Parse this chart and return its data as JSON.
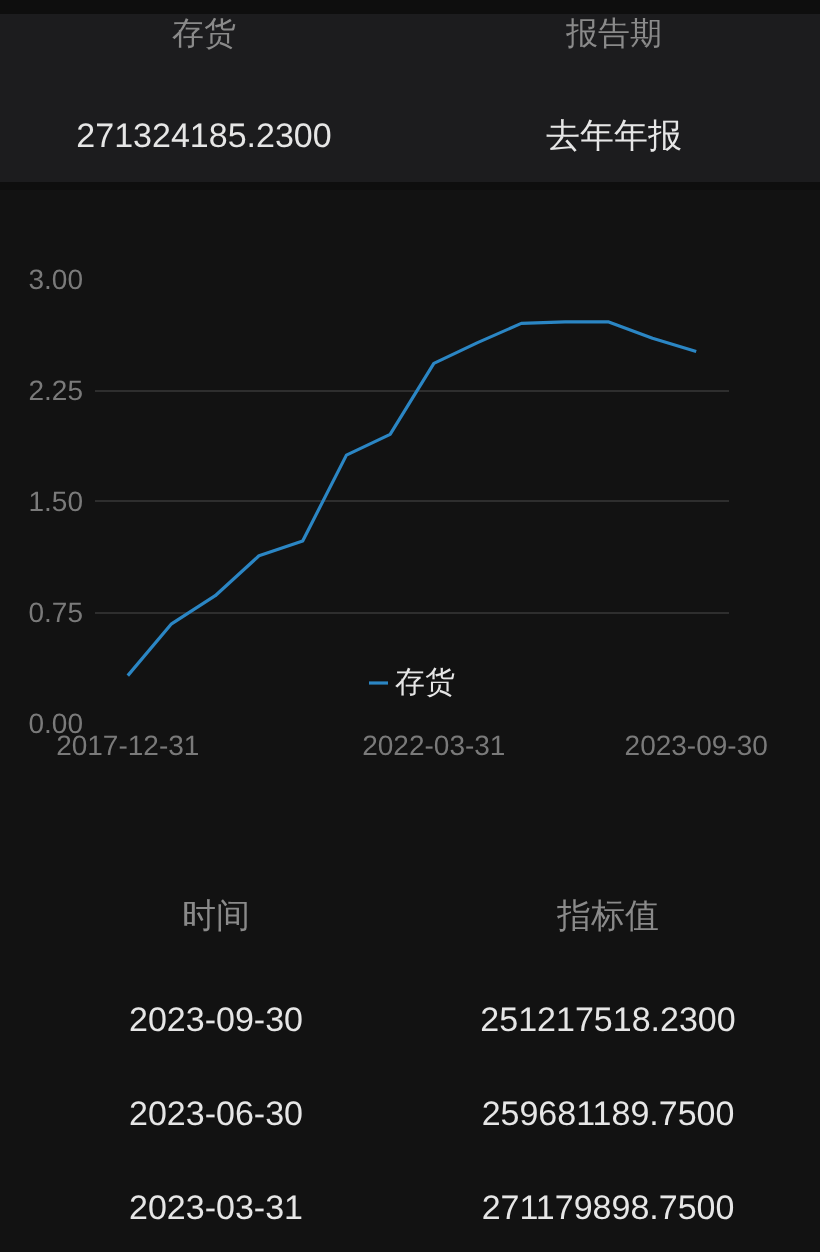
{
  "chart_data": {
    "type": "line",
    "categories": [
      "2017-12-31",
      null,
      null,
      null,
      null,
      null,
      null,
      "2022-03-31",
      null,
      null,
      null,
      null,
      null,
      "2023-09-30"
    ],
    "series": [
      {
        "name": "存货",
        "color": "#2b86c4",
        "values": [
          0.32,
          0.67,
          0.86,
          1.13,
          1.23,
          1.81,
          1.95,
          2.43,
          2.57,
          2.7,
          2.71,
          2.71,
          2.6,
          2.51
        ]
      }
    ],
    "ylim": [
      0,
      3
    ],
    "yticks": [
      {
        "value": 0,
        "label": "0.00"
      },
      0.75,
      {
        "value": 1.5,
        "label": "1.50"
      },
      2.25,
      {
        "value": 3,
        "label": "3.00"
      }
    ],
    "grid": "y",
    "legend": "bottom",
    "line_style": "solid",
    "annotations": [
      "存货",
      "报告期",
      "271324185.2300",
      "去年年报",
      "时间",
      "指标值",
      "2023-09-30",
      "251217518.2300",
      "2023-06-30",
      "259681189.7500",
      "2023-03-31",
      "271179898.7500"
    ]
  }
}
